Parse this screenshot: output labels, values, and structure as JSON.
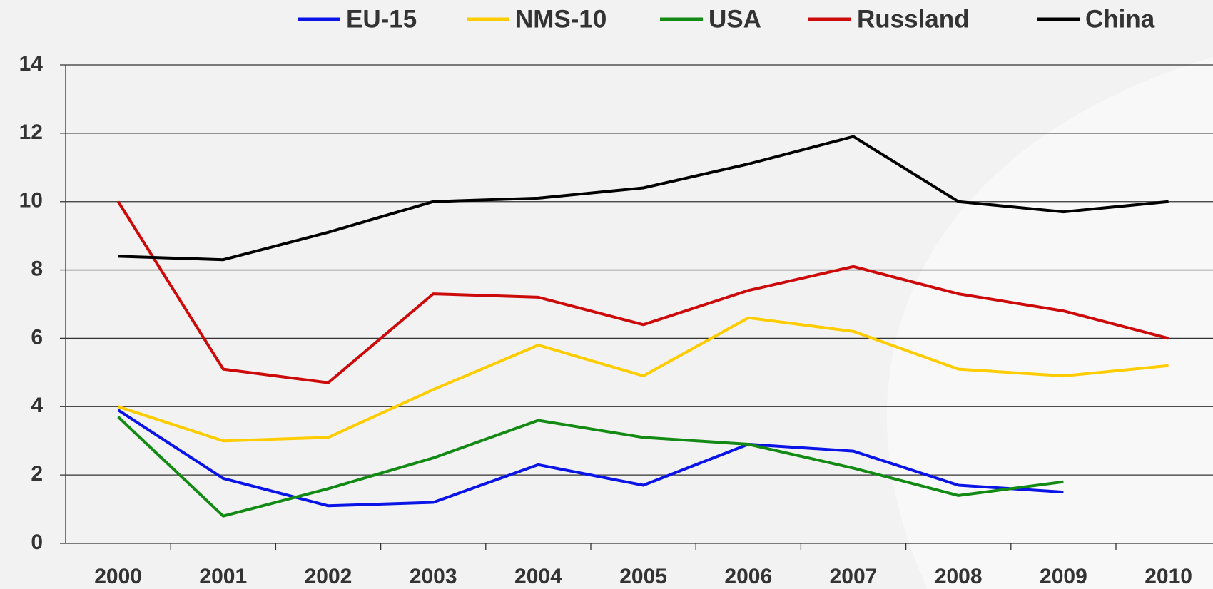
{
  "chart_data": {
    "type": "line",
    "categories": [
      "2000",
      "2001",
      "2002",
      "2003",
      "2004",
      "2005",
      "2006",
      "2007",
      "2008",
      "2009",
      "2010"
    ],
    "series": [
      {
        "name": "EU-15",
        "color": "#0a14e6",
        "values": [
          3.9,
          1.9,
          1.1,
          1.2,
          2.3,
          1.7,
          2.9,
          2.7,
          1.7,
          1.5,
          null
        ]
      },
      {
        "name": "NMS-10",
        "color": "#ffcc00",
        "values": [
          4.0,
          3.0,
          3.1,
          4.5,
          5.8,
          4.9,
          6.6,
          6.2,
          5.1,
          4.9,
          5.2
        ]
      },
      {
        "name": "USA",
        "color": "#138a13",
        "values": [
          3.7,
          0.8,
          1.6,
          2.5,
          3.6,
          3.1,
          2.9,
          2.2,
          1.4,
          1.8,
          null
        ]
      },
      {
        "name": "Russland",
        "color": "#cc0a0a",
        "values": [
          10.0,
          5.1,
          4.7,
          7.3,
          7.2,
          6.4,
          7.4,
          8.1,
          7.3,
          6.8,
          6.0
        ]
      },
      {
        "name": "China",
        "color": "#000000",
        "values": [
          8.4,
          8.3,
          9.1,
          10.0,
          10.1,
          10.4,
          11.1,
          11.9,
          10.0,
          9.7,
          10.0
        ]
      }
    ],
    "ylim": [
      0,
      14
    ],
    "yticks": [
      0,
      2,
      4,
      6,
      8,
      10,
      12,
      14
    ],
    "grid": true,
    "legend": "top"
  }
}
